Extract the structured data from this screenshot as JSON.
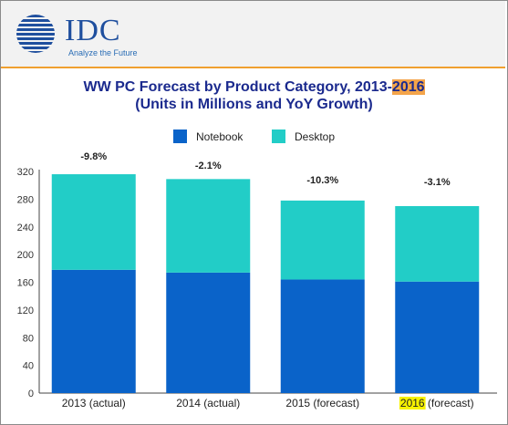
{
  "header": {
    "logo_text": "IDC",
    "tagline": "Analyze the Future"
  },
  "colors": {
    "notebook": "#0a63c9",
    "desktop": "#22cdc7",
    "header_rule": "#f0a030",
    "title": "#1b2a8e"
  },
  "chart_data": {
    "type": "bar",
    "stacked": true,
    "title_line1_prefix": "WW PC Forecast by Product Category, 2013-",
    "title_line1_year": "2016",
    "title_line2": "(Units in Millions and YoY Growth)",
    "categories": [
      {
        "prefix": "",
        "year": "2013",
        "suffix": " (actual)",
        "highlight": false
      },
      {
        "prefix": "",
        "year": "2014",
        "suffix": " (actual)",
        "highlight": false
      },
      {
        "prefix": "",
        "year": "2015",
        "suffix": " (forecast)",
        "highlight": false
      },
      {
        "prefix": "",
        "year": "2016",
        "suffix": " (forecast)",
        "highlight": true
      }
    ],
    "series": [
      {
        "name": "Notebook",
        "values": [
          178,
          174,
          164,
          161
        ]
      },
      {
        "name": "Desktop",
        "values": [
          138,
          135,
          114,
          109
        ]
      }
    ],
    "yoy_labels": [
      "-9.8%",
      "-2.1%",
      "-10.3%",
      "-3.1%"
    ],
    "ylim": [
      0,
      320
    ],
    "yticks": [
      0,
      40,
      80,
      120,
      160,
      200,
      240,
      280,
      320
    ],
    "legend_position": "top-center",
    "grid": false
  }
}
